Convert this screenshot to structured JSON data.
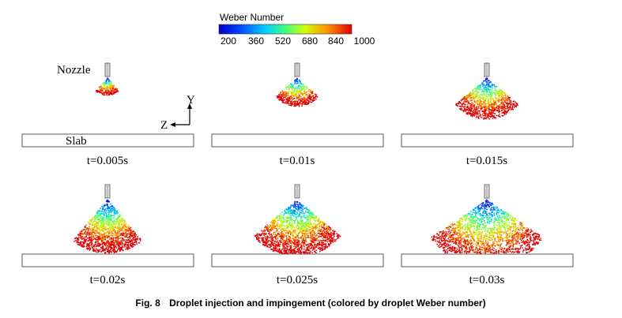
{
  "colorbar": {
    "title": "Weber Number",
    "ticks": [
      "200",
      "360",
      "520",
      "680",
      "840",
      "1000"
    ]
  },
  "labels": {
    "nozzle": "Nozzle",
    "y_axis": "Y",
    "z_axis": "Z",
    "slab": "Slab"
  },
  "panels": [
    "t=0.005s",
    "t=0.01s",
    "t=0.015s",
    "t=0.02s",
    "t=0.025s",
    "t=0.03s"
  ],
  "caption": {
    "number": "Fig. 8",
    "text": "Droplet injection and impingement (colored by droplet Weber number)"
  }
}
